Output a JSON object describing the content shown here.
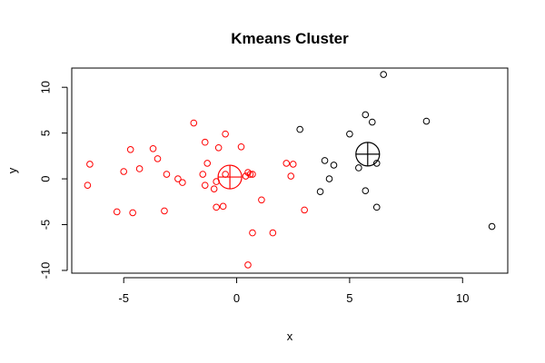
{
  "chart_data": {
    "type": "scatter",
    "title": "Kmeans Cluster",
    "xlabel": "x",
    "ylabel": "y",
    "xlim": [
      -7.3,
      12.0
    ],
    "ylim": [
      -10.3,
      12.1
    ],
    "xticks": [
      -5,
      0,
      5,
      10
    ],
    "yticks": [
      -10,
      -5,
      0,
      5,
      10
    ],
    "grid": false,
    "legend": "none",
    "series": [
      {
        "color": "#ff0000",
        "points": [
          [
            -6.5,
            1.6
          ],
          [
            -6.6,
            -0.7
          ],
          [
            -5.3,
            -3.6
          ],
          [
            -5.0,
            0.8
          ],
          [
            -4.7,
            3.2
          ],
          [
            -4.6,
            -3.7
          ],
          [
            -4.3,
            1.1
          ],
          [
            -3.7,
            3.3
          ],
          [
            -3.5,
            2.2
          ],
          [
            -3.2,
            -3.5
          ],
          [
            -3.1,
            0.5
          ],
          [
            -2.6,
            0.0
          ],
          [
            -2.4,
            -0.4
          ],
          [
            -1.9,
            6.1
          ],
          [
            -1.5,
            0.5
          ],
          [
            -1.4,
            -0.7
          ],
          [
            -1.3,
            1.7
          ],
          [
            -1.4,
            4.0
          ],
          [
            -1.0,
            -1.1
          ],
          [
            -0.9,
            -0.3
          ],
          [
            -0.9,
            -3.1
          ],
          [
            -0.8,
            3.4
          ],
          [
            -0.6,
            -3.0
          ],
          [
            -0.5,
            4.9
          ],
          [
            -0.5,
            0.5
          ],
          [
            0.2,
            3.5
          ],
          [
            0.4,
            0.3
          ],
          [
            0.5,
            0.7
          ],
          [
            0.6,
            0.5
          ],
          [
            0.7,
            0.5
          ],
          [
            0.5,
            -9.4
          ],
          [
            0.7,
            -5.9
          ],
          [
            1.1,
            -2.3
          ],
          [
            1.6,
            -5.9
          ],
          [
            2.2,
            1.7
          ],
          [
            2.4,
            0.3
          ],
          [
            2.5,
            1.6
          ],
          [
            3.0,
            -3.4
          ]
        ],
        "center": [
          -0.3,
          0.2
        ]
      },
      {
        "color": "#000000",
        "points": [
          [
            2.8,
            5.4
          ],
          [
            3.7,
            -1.4
          ],
          [
            3.9,
            2.0
          ],
          [
            4.1,
            0.0
          ],
          [
            4.3,
            1.5
          ],
          [
            5.0,
            4.9
          ],
          [
            5.4,
            1.2
          ],
          [
            5.7,
            7.0
          ],
          [
            5.7,
            -1.3
          ],
          [
            6.0,
            6.2
          ],
          [
            6.2,
            1.7
          ],
          [
            6.2,
            -3.1
          ],
          [
            6.5,
            11.4
          ],
          [
            8.4,
            6.3
          ],
          [
            11.3,
            -5.2
          ]
        ],
        "center": [
          5.8,
          2.7
        ]
      }
    ]
  }
}
